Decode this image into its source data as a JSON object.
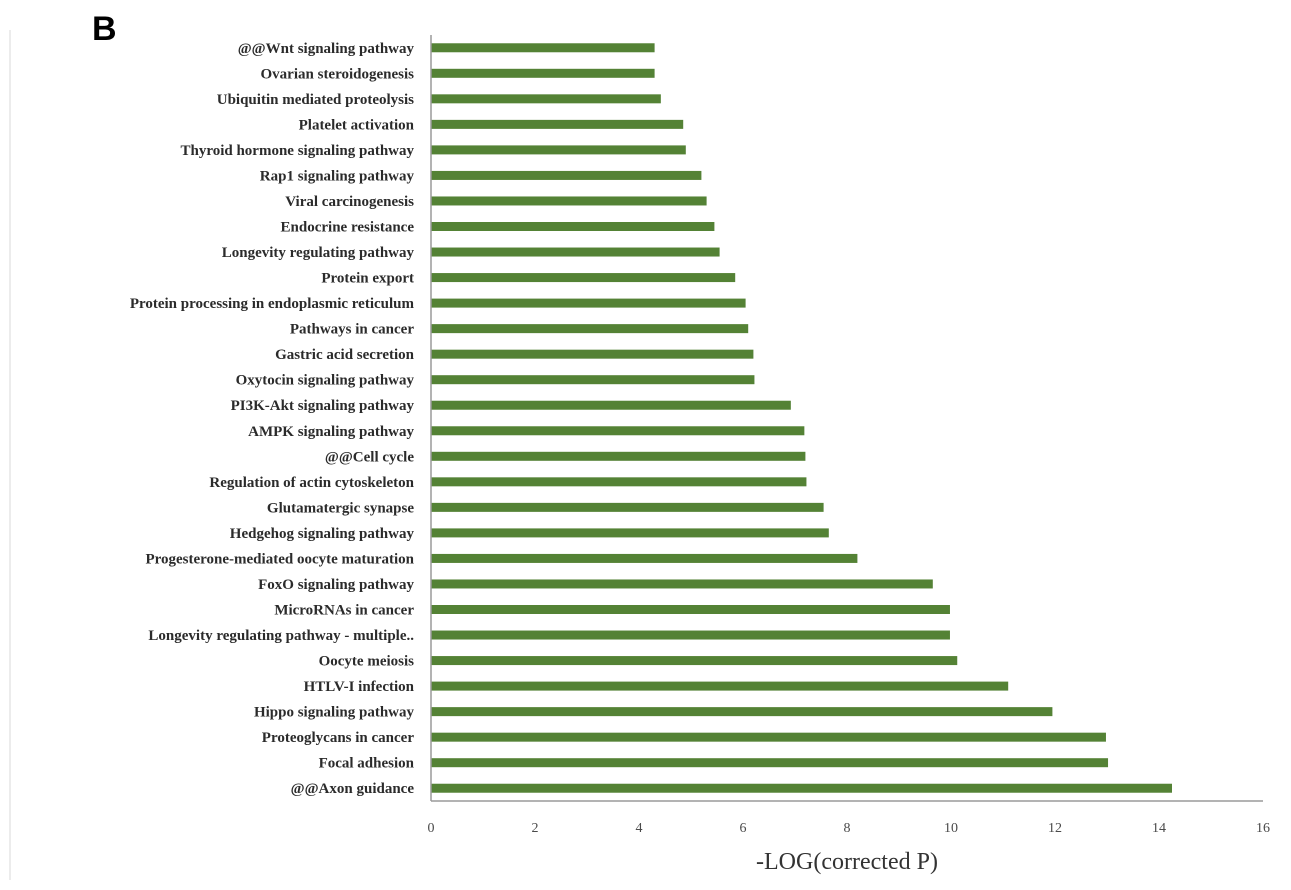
{
  "figure": {
    "panel_letter": "B"
  },
  "chart_data": {
    "type": "bar",
    "orientation": "horizontal",
    "title": "",
    "xlabel": "-LOG(corrected P)",
    "ylabel": "",
    "xlim": [
      0,
      16
    ],
    "xticks": [
      0,
      2,
      4,
      6,
      8,
      10,
      12,
      14,
      16
    ],
    "xtick_labels": [
      "0",
      "2",
      "4",
      "6",
      "8",
      "10",
      "12",
      "14",
      "16"
    ],
    "bar_color": "#548235",
    "grid": false,
    "legend": "none",
    "categories": [
      "@@Wnt signaling pathway",
      "Ovarian steroidogenesis",
      "Ubiquitin mediated proteolysis",
      "Platelet activation",
      "Thyroid hormone signaling pathway",
      "Rap1 signaling pathway",
      "Viral carcinogenesis",
      "Endocrine resistance",
      "Longevity regulating pathway",
      "Protein export",
      "Protein processing in endoplasmic reticulum",
      "Pathways in cancer",
      "Gastric acid secretion",
      "Oxytocin signaling pathway",
      "PI3K-Akt signaling pathway",
      "AMPK signaling pathway",
      "@@Cell cycle",
      "Regulation of actin cytoskeleton",
      "Glutamatergic synapse",
      "Hedgehog signaling pathway",
      "Progesterone-mediated oocyte maturation",
      "FoxO signaling pathway",
      "MicroRNAs in cancer",
      "Longevity regulating pathway - multiple..",
      "Oocyte meiosis",
      "HTLV-I infection",
      "Hippo signaling pathway",
      "Proteoglycans in cancer",
      "Focal adhesion",
      "@@Axon guidance"
    ],
    "values": [
      4.3,
      4.3,
      4.42,
      4.85,
      4.9,
      5.2,
      5.3,
      5.45,
      5.55,
      5.85,
      6.05,
      6.1,
      6.2,
      6.22,
      6.92,
      7.18,
      7.2,
      7.22,
      7.55,
      7.65,
      8.2,
      9.65,
      9.98,
      9.98,
      10.12,
      11.1,
      11.95,
      12.98,
      13.02,
      14.25
    ]
  }
}
